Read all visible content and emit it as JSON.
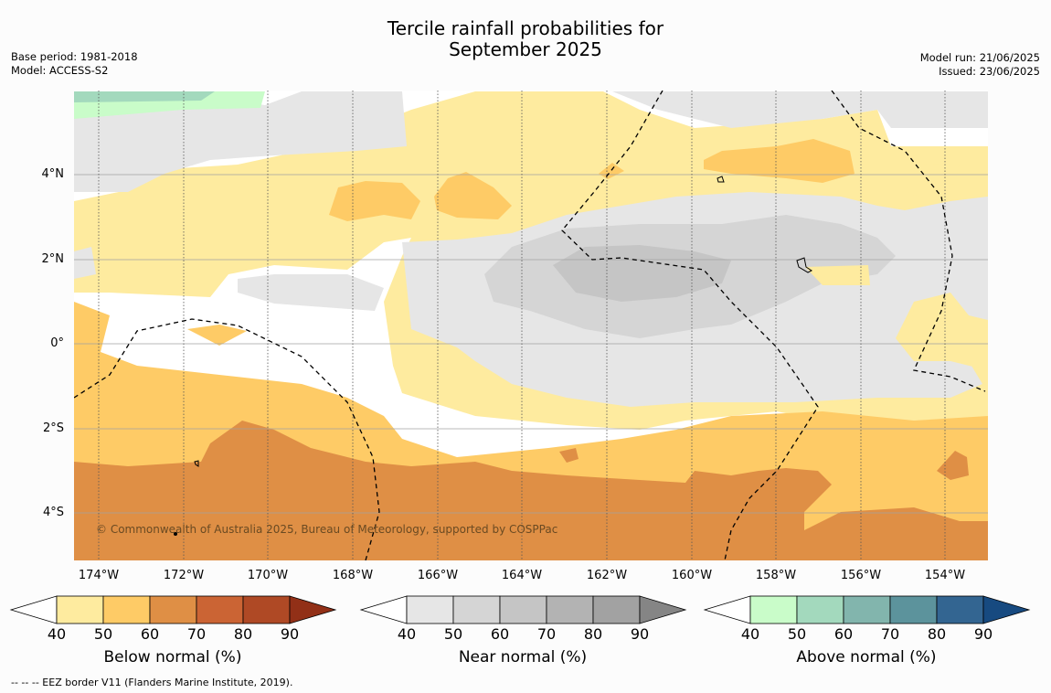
{
  "title_line1": "Tercile rainfall probabilities for",
  "title_line2": "September 2025",
  "meta_left": {
    "base_period": "Base period: 1981-2018",
    "model": "Model: ACCESS-S2"
  },
  "meta_right": {
    "model_run": "Model run: 21/06/2025",
    "issued": "Issued: 23/06/2025"
  },
  "map": {
    "latitude_labels": [
      "4°N",
      "2°N",
      "0°",
      "2°S",
      "4°S"
    ],
    "longitude_labels": [
      "174°W",
      "172°W",
      "170°W",
      "168°W",
      "166°W",
      "164°W",
      "162°W",
      "160°W",
      "158°W",
      "156°W",
      "154°W"
    ],
    "copyright": "© Commonwealth of Australia 2025, Bureau of Meteorology, supported by COSPPac"
  },
  "colorbars": [
    {
      "label": "Below normal (%)",
      "ticks": [
        "40",
        "50",
        "60",
        "70",
        "80",
        "90"
      ],
      "colors": [
        "#ffffff",
        "#feeb9f",
        "#fecb66",
        "#df8f45",
        "#cb6434",
        "#af4925",
        "#923017"
      ]
    },
    {
      "label": "Near normal (%)",
      "ticks": [
        "40",
        "50",
        "60",
        "70",
        "80",
        "90"
      ],
      "colors": [
        "#ffffff",
        "#e6e6e6",
        "#d5d5d5",
        "#c5c5c5",
        "#b3b3b3",
        "#a2a2a2",
        "#858585"
      ]
    },
    {
      "label": "Above normal (%)",
      "ticks": [
        "40",
        "50",
        "60",
        "70",
        "80",
        "90"
      ],
      "colors": [
        "#ffffff",
        "#c9fcc9",
        "#a3d9bd",
        "#82b5ad",
        "#5c939c",
        "#336591",
        "#174a80"
      ]
    }
  ],
  "footnote": "-- -- -- EEZ border V11 (Flanders Marine Institute, 2019)."
}
